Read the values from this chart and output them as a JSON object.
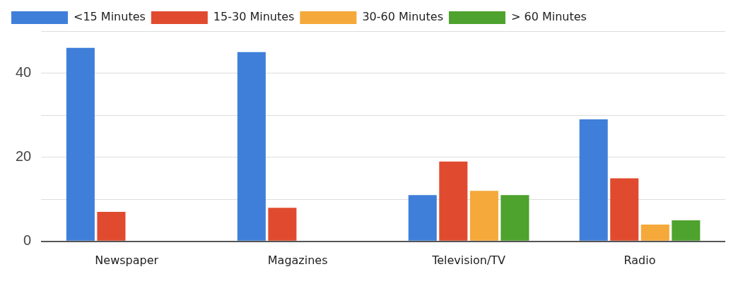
{
  "chart_data": {
    "type": "bar",
    "categories": [
      "Newspaper",
      "Magazines",
      "Television/TV",
      "Radio"
    ],
    "series": [
      {
        "name": "<15 Minutes",
        "color": "#3f7fd9",
        "values": [
          46,
          45,
          11,
          29
        ]
      },
      {
        "name": "15-30 Minutes",
        "color": "#e04b2f",
        "values": [
          7,
          8,
          19,
          15
        ]
      },
      {
        "name": "30-60 Minutes",
        "color": "#f4a93a",
        "values": [
          0,
          0,
          12,
          4
        ]
      },
      {
        "name": "> 60 Minutes",
        "color": "#4ea22e",
        "values": [
          0,
          0,
          11,
          5
        ]
      }
    ],
    "ylim": [
      0,
      50
    ],
    "yticks": [
      0,
      {
        "value": 10,
        "label": null
      },
      20,
      {
        "value": 30,
        "label": null
      },
      40,
      {
        "value": 50,
        "label": null
      }
    ],
    "grid": "y",
    "legend": "top"
  }
}
